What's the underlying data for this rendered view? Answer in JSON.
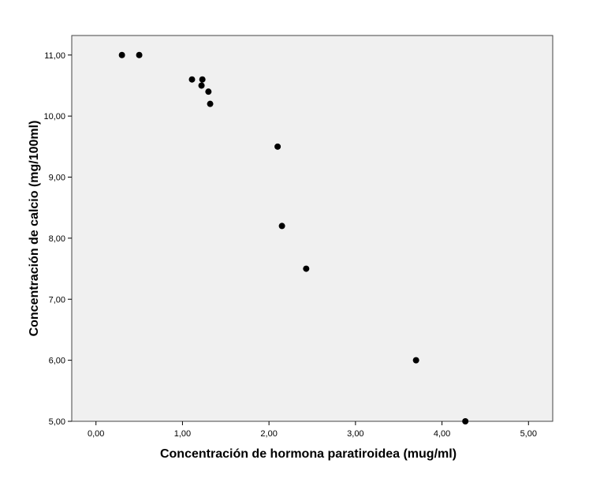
{
  "chart_data": {
    "type": "scatter",
    "title": "",
    "xlabel": "Concentración de hormona paratiroidea (mug/ml)",
    "ylabel": "Concentración de calcio (mg/100ml)",
    "xlim": [
      -0.28,
      5.28
    ],
    "ylim": [
      5.0,
      11.32
    ],
    "xticks": [
      0,
      1,
      2,
      3,
      4,
      5
    ],
    "yticks": [
      5,
      6,
      7,
      8,
      9,
      10,
      11
    ],
    "xtick_labels": [
      "0,00",
      "1,00",
      "2,00",
      "3,00",
      "4,00",
      "5,00"
    ],
    "ytick_labels": [
      "5,00",
      "6,00",
      "7,00",
      "8,00",
      "9,00",
      "10,00",
      "11,00"
    ],
    "grid": false,
    "legend": "none",
    "colors": {
      "plot_background": "#f0f0f0",
      "point": "#000000",
      "frame": "#444444"
    },
    "points": [
      {
        "x": 0.3,
        "y": 11.0
      },
      {
        "x": 0.5,
        "y": 11.0
      },
      {
        "x": 1.11,
        "y": 10.6
      },
      {
        "x": 1.23,
        "y": 10.6
      },
      {
        "x": 1.22,
        "y": 10.5
      },
      {
        "x": 1.3,
        "y": 10.4
      },
      {
        "x": 1.32,
        "y": 10.2
      },
      {
        "x": 2.1,
        "y": 9.5
      },
      {
        "x": 2.15,
        "y": 8.2
      },
      {
        "x": 2.43,
        "y": 7.5
      },
      {
        "x": 3.7,
        "y": 6.0
      },
      {
        "x": 4.27,
        "y": 5.0
      }
    ]
  }
}
